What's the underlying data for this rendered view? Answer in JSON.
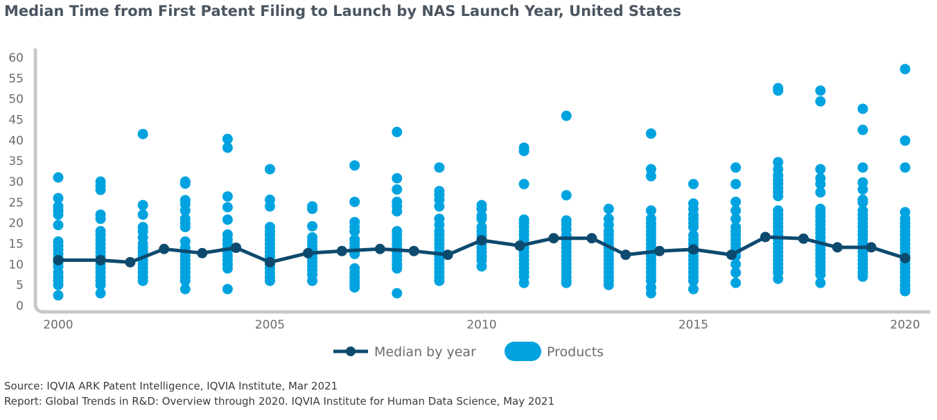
{
  "title": "Median Time from First Patent Filing to Launch by NAS Launch Year, United States",
  "source_line": "Source: IQVIA ARK Patent Intelligence, IQVIA Institute, Mar 2021",
  "report_line": "Report: Global Trends in R&D: Overview through 2020. IQVIA Institute for Human Data Science, May 2021",
  "colors": {
    "median": "#0d4a6e",
    "products": "#00a3e0",
    "axis": "#c8c8c8",
    "title": "#4a5560"
  },
  "chart_data": {
    "type": "scatter",
    "title": "Median Time from First Patent Filing to Launch by NAS Launch Year, United States",
    "xlabel": "",
    "ylabel": "",
    "xlim": [
      2000,
      2020
    ],
    "ylim": [
      0,
      60
    ],
    "xticks": [
      "2000",
      "2005",
      "2010",
      "2015",
      "2020"
    ],
    "yticks": [
      "0",
      "5",
      "10",
      "15",
      "20",
      "25",
      "30",
      "35",
      "40",
      "45",
      "50",
      "55",
      "60"
    ],
    "grid": false,
    "legend": "bottom-center",
    "series": [
      {
        "name": "Median by year",
        "type": "line",
        "points": [
          [
            2000,
            11.0
          ],
          [
            2001,
            11.0
          ],
          [
            2001.7,
            10.5
          ],
          [
            2002.5,
            13.7
          ],
          [
            2003.4,
            12.7
          ],
          [
            2004.2,
            14.0
          ],
          [
            2005,
            10.5
          ],
          [
            2005.9,
            12.7
          ],
          [
            2006.7,
            13.2
          ],
          [
            2007.6,
            13.7
          ],
          [
            2008.4,
            13.2
          ],
          [
            2009.2,
            12.3
          ],
          [
            2010,
            15.8
          ],
          [
            2010.9,
            14.5
          ],
          [
            2011.7,
            16.3
          ],
          [
            2012.6,
            16.3
          ],
          [
            2013.4,
            12.3
          ],
          [
            2014.2,
            13.2
          ],
          [
            2015,
            13.6
          ],
          [
            2015.9,
            12.3
          ],
          [
            2016.7,
            16.6
          ],
          [
            2017.6,
            16.2
          ],
          [
            2018.4,
            14.1
          ],
          [
            2019.2,
            14.1
          ],
          [
            2020,
            11.5
          ]
        ]
      },
      {
        "name": "Products",
        "type": "scatter",
        "groups": [
          {
            "x": 2000,
            "y": [
              31,
              26,
              24,
              23,
              22,
              19.5,
              15.5,
              14.5,
              13.5,
              12.5,
              11.5,
              10.5,
              9.5,
              8,
              7,
              6,
              5,
              2.5
            ]
          },
          {
            "x": 2001,
            "y": [
              30,
              29,
              28,
              22,
              21,
              18,
              17,
              16,
              15,
              14,
              13,
              12,
              11,
              10,
              9,
              8,
              7,
              6,
              5,
              3
            ]
          },
          {
            "x": 2002,
            "y": [
              41.5,
              24.3,
              22,
              19,
              18,
              16.5,
              15,
              14,
              13,
              12,
              11,
              10,
              9,
              8,
              7,
              6
            ]
          },
          {
            "x": 2003,
            "y": [
              30,
              29.5,
              25.5,
              24.5,
              23,
              21,
              20,
              19,
              15.5,
              14,
              13,
              12,
              11,
              10,
              9,
              8,
              7,
              6,
              4
            ]
          },
          {
            "x": 2004,
            "y": [
              40.3,
              38.2,
              26.4,
              23.8,
              20.8,
              17.2,
              16,
              15,
              14,
              13,
              12,
              11,
              10,
              9,
              4
            ]
          },
          {
            "x": 2005,
            "y": [
              33,
              25.6,
              24,
              19,
              18,
              17,
              16,
              15,
              14,
              13,
              12,
              11,
              10,
              9,
              8,
              7,
              6
            ]
          },
          {
            "x": 2006,
            "y": [
              24,
              23.4,
              19.2,
              16.5,
              15.5,
              14.5,
              13.5,
              12.5,
              11.5,
              10.5,
              9.5,
              8.5,
              7.5,
              6
            ]
          },
          {
            "x": 2007,
            "y": [
              33.9,
              25.1,
              20.2,
              19,
              18,
              16,
              15,
              14,
              13,
              12.5,
              9,
              8,
              7,
              6,
              5,
              4.4
            ]
          },
          {
            "x": 2008,
            "y": [
              42,
              30.8,
              28.1,
              25.1,
              24,
              22.8,
              18,
              17,
              16,
              15,
              14,
              13,
              12,
              11,
              10,
              9,
              3
            ]
          },
          {
            "x": 2009,
            "y": [
              33.4,
              27.7,
              26.8,
              25.6,
              24,
              21,
              19.5,
              18,
              17,
              16,
              15,
              14,
              13,
              12,
              11,
              10,
              9,
              8,
              7,
              6
            ]
          },
          {
            "x": 2010,
            "y": [
              24.3,
              23.4,
              21.7,
              21,
              19,
              18,
              17,
              16,
              15,
              14,
              13,
              12,
              11,
              9.5
            ]
          },
          {
            "x": 2011,
            "y": [
              38.2,
              37.4,
              29.4,
              20.8,
              20,
              19,
              18,
              17,
              16,
              15,
              14,
              13,
              12,
              11,
              10,
              9,
              8,
              7,
              5.5
            ]
          },
          {
            "x": 2012,
            "y": [
              45.9,
              26.7,
              20.6,
              19.6,
              18.4,
              17,
              16,
              15,
              14,
              13,
              12,
              11,
              10,
              9,
              8,
              7,
              6,
              5.5
            ]
          },
          {
            "x": 2013,
            "y": [
              23.4,
              21,
              19.5,
              18,
              17,
              16,
              15,
              14,
              13,
              12,
              11,
              10,
              9,
              8,
              7,
              6,
              5
            ]
          },
          {
            "x": 2014,
            "y": [
              41.6,
              33,
              31.3,
              23,
              21,
              20,
              19,
              18,
              17,
              16,
              15,
              14,
              13,
              12,
              11,
              10,
              9,
              8,
              7,
              6,
              4.4,
              3
            ]
          },
          {
            "x": 2015,
            "y": [
              29.4,
              24.7,
              23.4,
              22,
              21,
              20,
              19,
              17,
              16,
              15,
              14,
              13,
              12,
              11,
              10,
              9,
              8,
              7,
              6,
              4
            ]
          },
          {
            "x": 2016,
            "y": [
              33.4,
              29.4,
              25.1,
              23,
              21,
              19,
              18,
              17,
              16,
              15,
              14,
              13,
              12,
              10,
              8,
              5.5
            ]
          },
          {
            "x": 2017,
            "y": [
              52.6,
              52,
              34.7,
              33,
              31.5,
              30.4,
              29.5,
              28.4,
              27.5,
              26.5,
              23,
              22,
              21,
              20,
              19,
              18,
              17,
              16,
              15,
              14,
              13,
              12,
              11,
              10,
              9,
              8,
              6.5
            ]
          },
          {
            "x": 2018,
            "y": [
              52,
              49.4,
              33,
              30.8,
              29.4,
              27.4,
              23.4,
              22.5,
              21.5,
              20.5,
              19.5,
              18.5,
              17.5,
              16.5,
              15.5,
              14.5,
              13.5,
              12.5,
              11.5,
              10.5,
              9.5,
              8.5,
              7.5,
              5.5
            ]
          },
          {
            "x": 2019,
            "y": [
              47.6,
              42.5,
              33.4,
              29.8,
              28.1,
              25.6,
              25,
              23,
              22,
              21,
              20,
              19,
              18,
              17,
              16,
              15,
              14,
              13,
              12,
              11,
              10,
              9,
              8,
              7
            ]
          },
          {
            "x": 2020,
            "y": [
              57.2,
              39.9,
              33.4,
              22.6,
              21,
              20,
              19,
              18,
              17,
              16,
              15,
              14,
              13,
              12,
              11,
              10,
              9,
              8,
              7,
              6,
              5,
              4,
              3.5
            ]
          }
        ]
      }
    ]
  }
}
